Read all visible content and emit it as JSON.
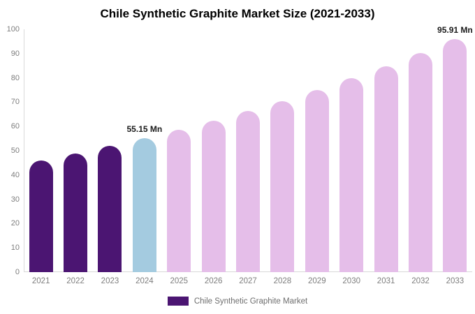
{
  "title": "Chile Synthetic Graphite Market Size (2021-2033)",
  "legend": {
    "label": "Chile Synthetic Graphite Market",
    "swatch_color": "#4b1572"
  },
  "colors": {
    "bar_dark_purple": "#4b1572",
    "bar_highlight_blue": "#a4cbe0",
    "bar_forecast_pink": "#e5bee9",
    "axis_line": "#d9d9d9",
    "tick_text": "#7d7d7d",
    "value_label_text": "#1a1a1a"
  },
  "chart_data": {
    "type": "bar",
    "title": "Chile Synthetic Graphite Market Size (2021-2033)",
    "xlabel": "",
    "ylabel": "",
    "ylim": [
      0,
      100
    ],
    "yticks": [
      0,
      10,
      20,
      30,
      40,
      50,
      60,
      70,
      80,
      90,
      100
    ],
    "grid": false,
    "legend_position": "bottom",
    "categories": [
      "2021",
      "2022",
      "2023",
      "2024",
      "2025",
      "2026",
      "2027",
      "2028",
      "2029",
      "2030",
      "2031",
      "2032",
      "2033"
    ],
    "values": [
      45.9,
      48.8,
      51.9,
      55.15,
      58.7,
      62.4,
      66.3,
      70.5,
      75.0,
      79.8,
      84.8,
      90.2,
      95.91
    ],
    "unit": "Mn",
    "value_labels": [
      "",
      "",
      "",
      "55.15 Mn",
      "",
      "",
      "",
      "",
      "",
      "",
      "",
      "",
      "95.91 Mn"
    ],
    "bar_colors": [
      "#4b1572",
      "#4b1572",
      "#4b1572",
      "#a4cbe0",
      "#e5bee9",
      "#e5bee9",
      "#e5bee9",
      "#e5bee9",
      "#e5bee9",
      "#e5bee9",
      "#e5bee9",
      "#e5bee9",
      "#e5bee9"
    ]
  }
}
